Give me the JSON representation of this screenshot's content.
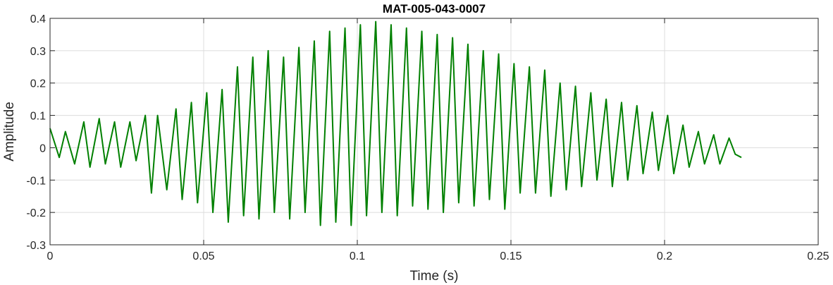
{
  "chart_data": {
    "type": "line",
    "title": "MAT-005-043-0007",
    "xlabel": "Time (s)",
    "ylabel": "Amplitude",
    "xlim": [
      0,
      0.25
    ],
    "ylim": [
      -0.3,
      0.4
    ],
    "xticks": [
      0,
      0.05,
      0.1,
      0.15,
      0.2,
      0.25
    ],
    "xtick_labels": [
      "0",
      "0.05",
      "0.1",
      "0.15",
      "0.2",
      "0.25"
    ],
    "yticks": [
      -0.3,
      -0.2,
      -0.1,
      0,
      0.1,
      0.2,
      0.3,
      0.4
    ],
    "ytick_labels": [
      "-0.3",
      "-0.2",
      "-0.1",
      "0",
      "0.1",
      "0.2",
      "0.3",
      "0.4"
    ],
    "grid": true,
    "series": [
      {
        "color": "#008000",
        "x": [
          0,
          0.003,
          0.005,
          0.008,
          0.011,
          0.013,
          0.016,
          0.018,
          0.021,
          0.023,
          0.026,
          0.028,
          0.031,
          0.033,
          0.035,
          0.038,
          0.041,
          0.043,
          0.046,
          0.048,
          0.051,
          0.053,
          0.056,
          0.058,
          0.061,
          0.063,
          0.066,
          0.068,
          0.071,
          0.073,
          0.076,
          0.078,
          0.081,
          0.083,
          0.086,
          0.088,
          0.091,
          0.093,
          0.096,
          0.098,
          0.101,
          0.103,
          0.106,
          0.108,
          0.111,
          0.113,
          0.116,
          0.118,
          0.121,
          0.123,
          0.126,
          0.128,
          0.131,
          0.133,
          0.136,
          0.138,
          0.141,
          0.143,
          0.146,
          0.148,
          0.151,
          0.153,
          0.156,
          0.158,
          0.161,
          0.163,
          0.166,
          0.168,
          0.171,
          0.173,
          0.176,
          0.178,
          0.181,
          0.183,
          0.186,
          0.188,
          0.191,
          0.193,
          0.196,
          0.198,
          0.201,
          0.203,
          0.206,
          0.208,
          0.211,
          0.213,
          0.216,
          0.218,
          0.221,
          0.223,
          0.225
        ],
        "y": [
          0.06,
          -0.03,
          0.05,
          -0.05,
          0.08,
          -0.06,
          0.09,
          -0.05,
          0.08,
          -0.06,
          0.08,
          -0.04,
          0.1,
          -0.14,
          0.1,
          -0.13,
          0.12,
          -0.16,
          0.14,
          -0.17,
          0.17,
          -0.2,
          0.18,
          -0.23,
          0.25,
          -0.21,
          0.28,
          -0.22,
          0.3,
          -0.2,
          0.28,
          -0.22,
          0.31,
          -0.2,
          0.33,
          -0.24,
          0.36,
          -0.23,
          0.37,
          -0.24,
          0.38,
          -0.21,
          0.39,
          -0.2,
          0.38,
          -0.21,
          0.37,
          -0.18,
          0.36,
          -0.19,
          0.35,
          -0.2,
          0.34,
          -0.17,
          0.32,
          -0.18,
          0.3,
          -0.16,
          0.29,
          -0.19,
          0.26,
          -0.14,
          0.25,
          -0.14,
          0.24,
          -0.15,
          0.2,
          -0.13,
          0.19,
          -0.12,
          0.17,
          -0.1,
          0.15,
          -0.12,
          0.14,
          -0.1,
          0.13,
          -0.08,
          0.11,
          -0.07,
          0.1,
          -0.08,
          0.07,
          -0.06,
          0.05,
          -0.05,
          0.04,
          -0.05,
          0.03,
          -0.02,
          -0.03
        ]
      }
    ]
  }
}
